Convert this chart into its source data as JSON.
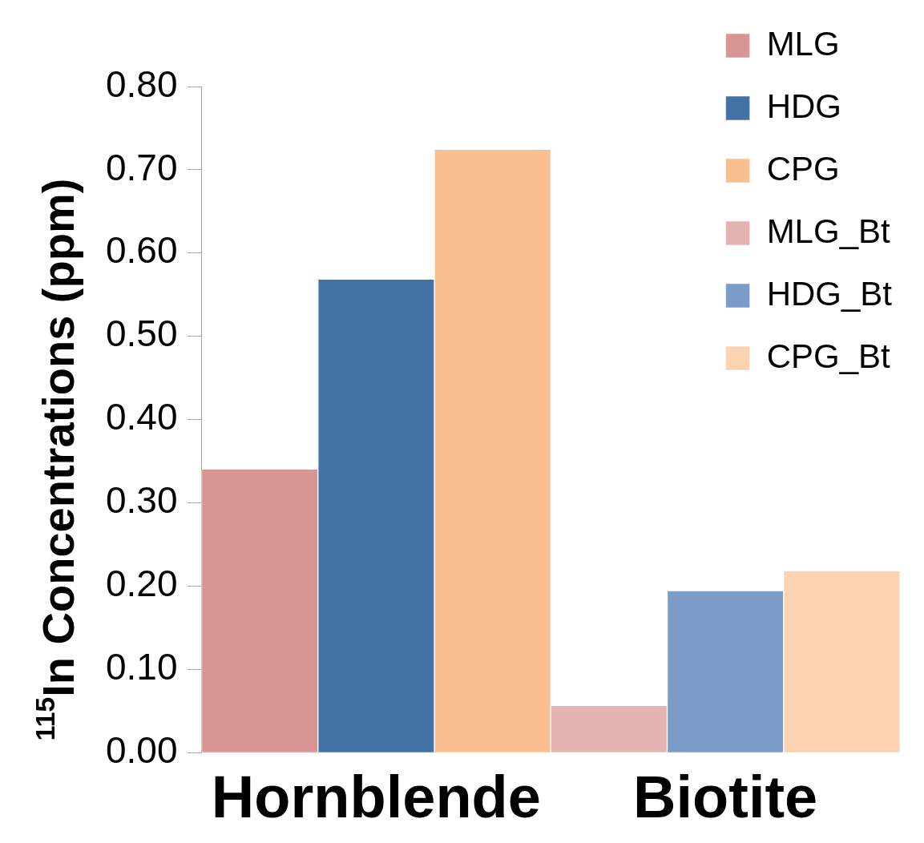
{
  "chart_data": {
    "type": "bar",
    "ylabel": "$^{115}$In Concentrations (ppm)",
    "categories": [
      "Hornblende",
      "Biotite"
    ],
    "series": [
      {
        "name": "MLG",
        "color": "#d99594",
        "values": [
          0.34,
          null
        ]
      },
      {
        "name": "HDG",
        "color": "#4472a6",
        "values": [
          0.568,
          null
        ]
      },
      {
        "name": "CPG",
        "color": "#f9bf8f",
        "values": [
          0.724,
          null
        ]
      },
      {
        "name": "MLG_Bt",
        "color": "#e6b3b3",
        "values": [
          null,
          0.056
        ]
      },
      {
        "name": "HDG_Bt",
        "color": "#7b9cc9",
        "values": [
          null,
          0.194
        ]
      },
      {
        "name": "CPG_Bt",
        "color": "#fbd3b0",
        "values": [
          null,
          0.218
        ]
      }
    ],
    "ylim": [
      0,
      0.8
    ],
    "yticks": [
      {
        "value": 0,
        "label": "0.00"
      },
      {
        "value": 0.1,
        "label": "0.10"
      },
      {
        "value": 0.2,
        "label": "0.20"
      },
      {
        "value": 0.3,
        "label": "0.30"
      },
      {
        "value": 0.4,
        "label": "0.40"
      },
      {
        "value": 0.5,
        "label": "0.50"
      },
      {
        "value": 0.6,
        "label": "0.60"
      },
      {
        "value": 0.7,
        "label": "0.70"
      },
      {
        "value": 0.8,
        "label": "0.80"
      }
    ],
    "grid": false,
    "legend": "top right"
  }
}
